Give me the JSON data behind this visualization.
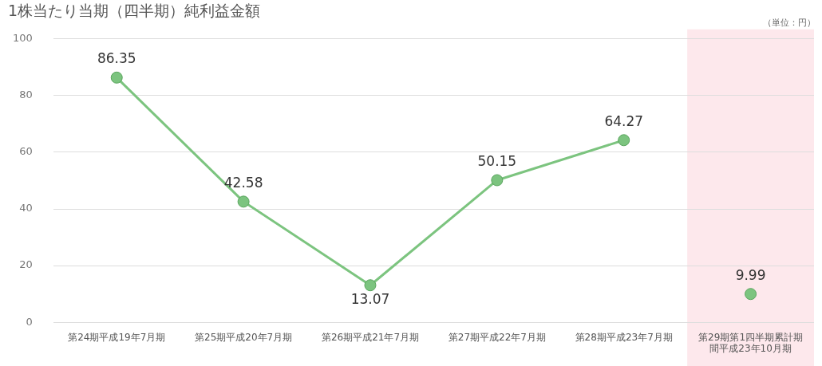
{
  "chart_data": {
    "type": "line",
    "title": "1株当たり当期（四半期）純利益金額",
    "annotations": [
      "（単位：円）"
    ],
    "categories": [
      "第24期平成19年7月期",
      "第25期平成20年7月期",
      "第26期平成21年7月期",
      "第27期平成22年7月期",
      "第28期平成23年7月期",
      "第29期第1四半期累計期間平成23年10月期"
    ],
    "series": [
      {
        "color": "#7cc47f",
        "values": [
          86.35,
          42.58,
          13.07,
          50.15,
          64.27,
          null
        ]
      },
      {
        "type": "scatter",
        "color": "#7cc47f",
        "values": [
          null,
          null,
          null,
          null,
          null,
          9.99
        ]
      }
    ],
    "bands": [
      {
        "axis": "x",
        "from": "第29期第1四半期累計期間平成23年10月期",
        "to": "第29期第1四半期累計期間平成23年10月期",
        "color": "#fde8ec"
      }
    ],
    "ylim": [
      0,
      100
    ],
    "yticks": [
      0,
      20,
      40,
      60,
      80,
      100
    ],
    "grid": "y",
    "marker": "circle",
    "data_labels": true
  }
}
